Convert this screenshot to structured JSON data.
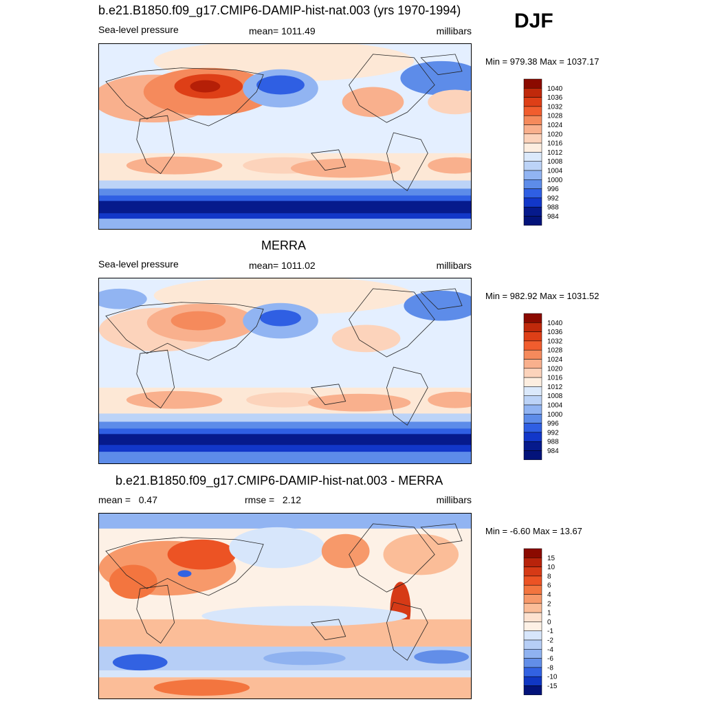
{
  "header": {
    "title": "b.e21.B1850.f09_g17.CMIP6-DAMIP-hist-nat.003 (yrs 1970-1994)",
    "season": "DJF"
  },
  "panels": [
    {
      "title": "",
      "left_label": "Sea-level pressure",
      "center_label": "mean= 1011.49",
      "right_label": "millibars",
      "minmax": "Min = 979.38 Max = 1037.17",
      "legend_labels": [
        "1040",
        "1036",
        "1032",
        "1028",
        "1024",
        "1020",
        "1016",
        "1012",
        "1008",
        "1004",
        "1000",
        "996",
        "992",
        "988",
        "984"
      ]
    },
    {
      "title": "MERRA",
      "left_label": "Sea-level pressure",
      "center_label": "mean= 1011.02",
      "right_label": "millibars",
      "minmax": "Min = 982.92 Max = 1031.52",
      "legend_labels": [
        "1040",
        "1036",
        "1032",
        "1028",
        "1024",
        "1020",
        "1016",
        "1012",
        "1008",
        "1004",
        "1000",
        "996",
        "992",
        "988",
        "984"
      ]
    },
    {
      "title": "b.e21.B1850.f09_g17.CMIP6-DAMIP-hist-nat.003 - MERRA",
      "left_label": "mean =   0.47",
      "center_label": "rmse =   2.12",
      "right_label": "millibars",
      "minmax": "Min =  -6.60 Max =  13.67",
      "legend_labels": [
        "15",
        "10",
        "8",
        "6",
        "4",
        "2",
        "1",
        "0",
        "-1",
        "-2",
        "-4",
        "-6",
        "-8",
        "-10",
        "-15"
      ]
    }
  ],
  "colors": {
    "pressure_scale": [
      "#8b0a00",
      "#c0290b",
      "#de3f17",
      "#f15d2e",
      "#f58a5c",
      "#f9b08d",
      "#fcd3bb",
      "#fdeee0",
      "#dbe9fb",
      "#bcd3f7",
      "#91b4f2",
      "#5d8ce9",
      "#2f5fe3",
      "#1237c9",
      "#061a8c",
      "#03137a"
    ],
    "diff_scale": [
      "#8b0a00",
      "#b8230b",
      "#d63a16",
      "#ec5324",
      "#f3753f",
      "#f7996a",
      "#fbbd98",
      "#fde2d0",
      "#fdf1e6",
      "#d7e6fb",
      "#b6cef6",
      "#8fb2f0",
      "#628ee8",
      "#3262e2",
      "#1037c3",
      "#03137a"
    ]
  }
}
